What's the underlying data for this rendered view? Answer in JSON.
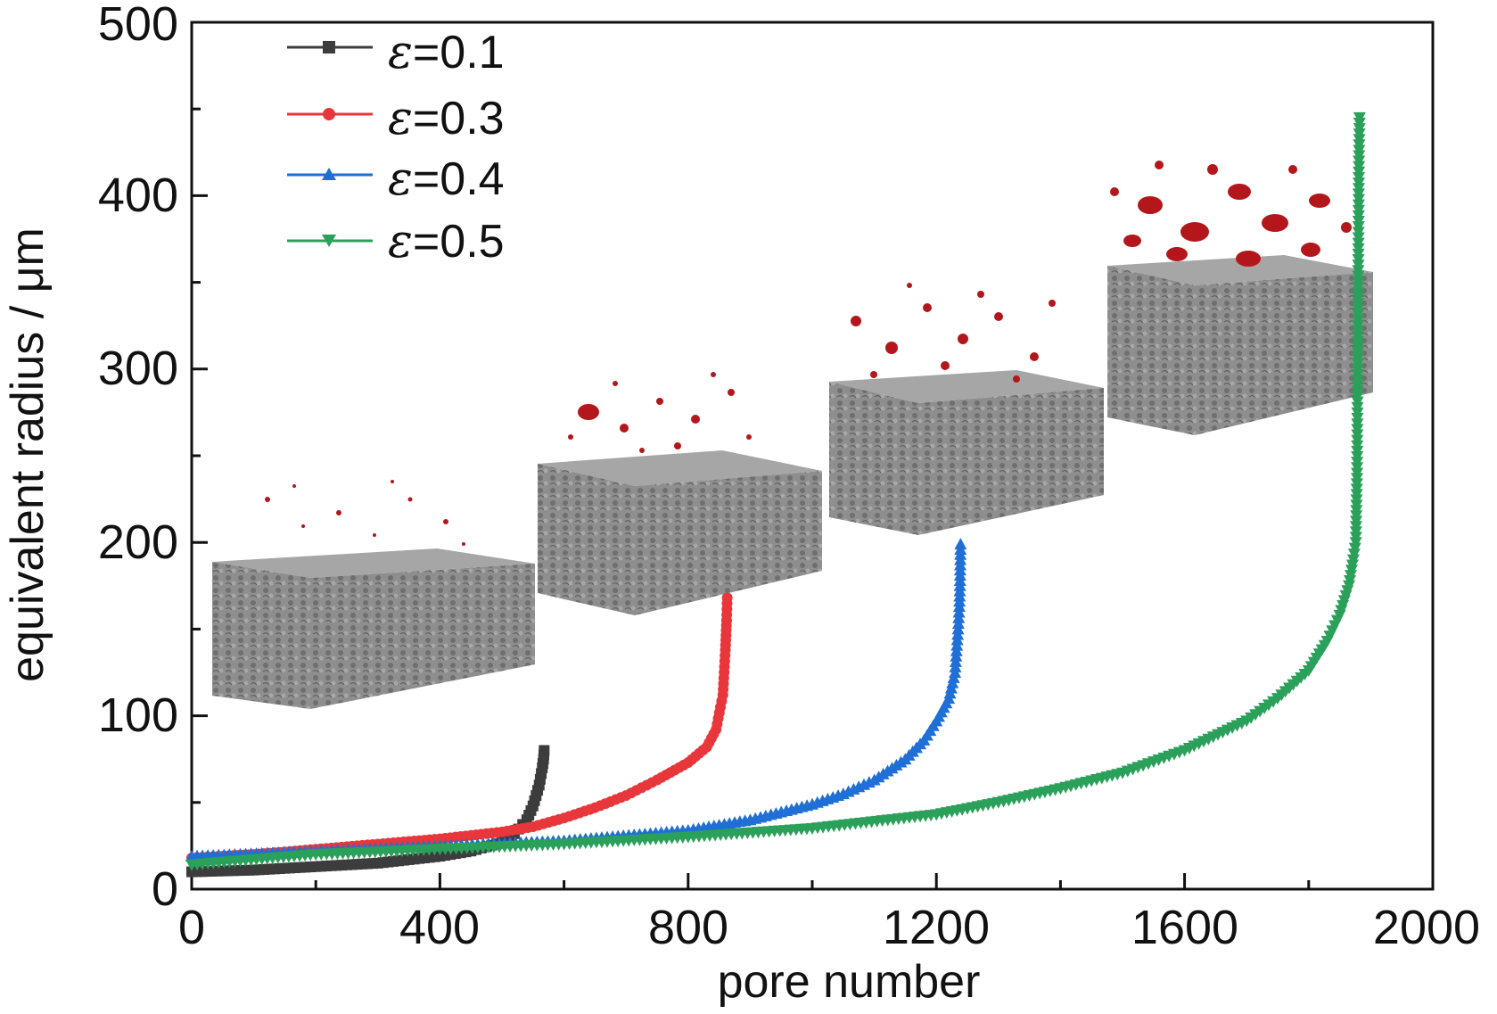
{
  "chart_data": {
    "type": "line",
    "title": "",
    "xlabel": "pore number",
    "ylabel": "equivalent radius / μm",
    "xlim": [
      0,
      2000
    ],
    "ylim": [
      0,
      500
    ],
    "xticks": [
      "0",
      "400",
      "800",
      "1200",
      "1600",
      "2000"
    ],
    "yticks": [
      "0",
      "100",
      "200",
      "300",
      "400",
      "500"
    ],
    "grid": false,
    "legend": {
      "placement": "top-left",
      "symbol": "ε"
    },
    "series": [
      {
        "name": "=0.1",
        "color": "#3c3c3c",
        "marker": "square",
        "points": [
          [
            0,
            10
          ],
          [
            100,
            11
          ],
          [
            200,
            13
          ],
          [
            300,
            15
          ],
          [
            400,
            19
          ],
          [
            450,
            22
          ],
          [
            500,
            27
          ],
          [
            520,
            32
          ],
          [
            540,
            40
          ],
          [
            550,
            48
          ],
          [
            560,
            60
          ],
          [
            565,
            70
          ],
          [
            567,
            75
          ],
          [
            568,
            80
          ]
        ]
      },
      {
        "name": "=0.3",
        "color": "#e8373b",
        "marker": "circle",
        "points": [
          [
            0,
            18
          ],
          [
            100,
            20
          ],
          [
            200,
            23
          ],
          [
            300,
            26
          ],
          [
            400,
            29
          ],
          [
            500,
            33
          ],
          [
            550,
            36
          ],
          [
            600,
            41
          ],
          [
            650,
            47
          ],
          [
            700,
            54
          ],
          [
            750,
            63
          ],
          [
            800,
            73
          ],
          [
            830,
            82
          ],
          [
            845,
            92
          ],
          [
            852,
            105
          ],
          [
            856,
            112
          ],
          [
            858,
            125
          ],
          [
            860,
            138
          ],
          [
            862,
            155
          ],
          [
            863,
            168
          ]
        ]
      },
      {
        "name": "=0.4",
        "color": "#1f6fd6",
        "marker": "triangle-up",
        "points": [
          [
            0,
            19
          ],
          [
            200,
            22
          ],
          [
            400,
            25
          ],
          [
            600,
            28
          ],
          [
            800,
            34
          ],
          [
            900,
            40
          ],
          [
            1000,
            49
          ],
          [
            1050,
            55
          ],
          [
            1100,
            63
          ],
          [
            1150,
            75
          ],
          [
            1180,
            86
          ],
          [
            1200,
            97
          ],
          [
            1220,
            110
          ],
          [
            1230,
            125
          ],
          [
            1235,
            150
          ],
          [
            1237,
            163
          ],
          [
            1238,
            175
          ],
          [
            1239,
            199
          ]
        ]
      },
      {
        "name": "=0.5",
        "color": "#2aa05a",
        "marker": "triangle-down",
        "points": [
          [
            0,
            14
          ],
          [
            200,
            20
          ],
          [
            400,
            23
          ],
          [
            600,
            26
          ],
          [
            800,
            30
          ],
          [
            1000,
            35
          ],
          [
            1200,
            43
          ],
          [
            1300,
            50
          ],
          [
            1400,
            58
          ],
          [
            1500,
            67
          ],
          [
            1600,
            80
          ],
          [
            1700,
            97
          ],
          [
            1750,
            110
          ],
          [
            1800,
            126
          ],
          [
            1830,
            143
          ],
          [
            1850,
            158
          ],
          [
            1865,
            175
          ],
          [
            1872,
            190
          ],
          [
            1876,
            200
          ],
          [
            1878,
            240
          ],
          [
            1879,
            300
          ],
          [
            1880,
            360
          ],
          [
            1881,
            420
          ],
          [
            1882,
            445
          ]
        ]
      }
    ]
  }
}
